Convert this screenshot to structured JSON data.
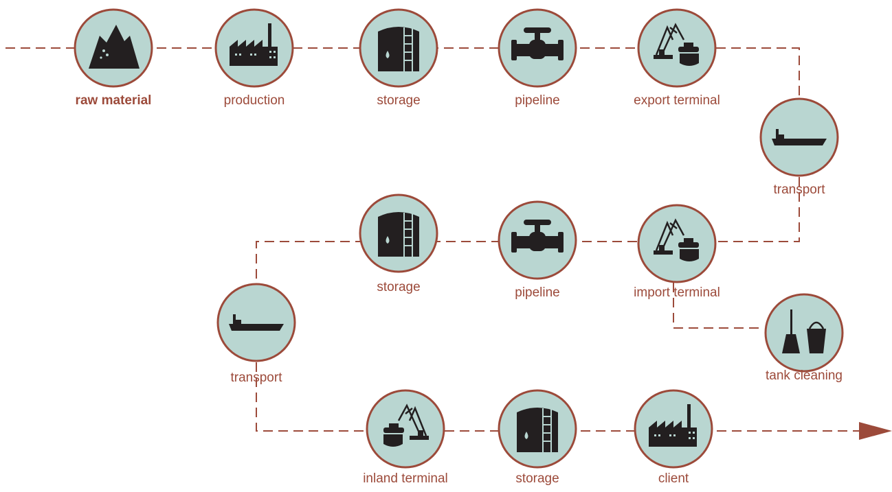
{
  "nodes": [
    {
      "label": "raw material"
    },
    {
      "label": "production"
    },
    {
      "label": "storage"
    },
    {
      "label": "pipeline"
    },
    {
      "label": "export terminal"
    },
    {
      "label": "transport"
    },
    {
      "label": "storage"
    },
    {
      "label": "pipeline"
    },
    {
      "label": "import terminal"
    },
    {
      "label": "tank cleaning"
    },
    {
      "label": "transport"
    },
    {
      "label": "inland terminal"
    },
    {
      "label": "storage"
    },
    {
      "label": "client"
    }
  ]
}
